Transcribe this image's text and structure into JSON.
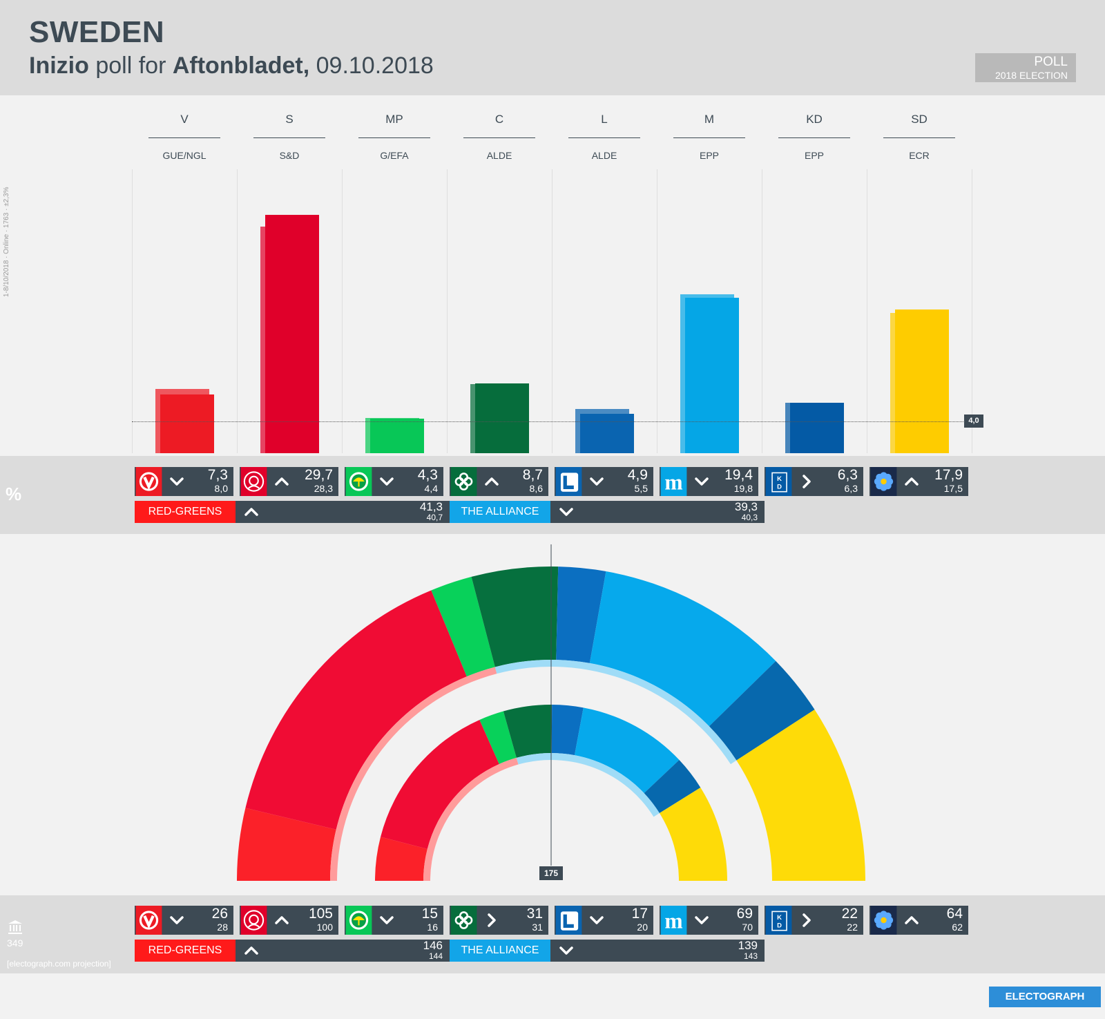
{
  "header": {
    "country": "SWEDEN",
    "pollster": "Inizio",
    "poll_for": "poll for",
    "client": "Aftonbladet,",
    "date": "09.10.2018",
    "badge_line1": "POLL",
    "badge_line2": "2018 ELECTION"
  },
  "side_note": "1-8/10/2018 · Online · 1763 · ±2,3%",
  "colors": {
    "V": "#ed1b24",
    "S": "#e0002a",
    "MP": "#08c757",
    "C": "#066d3c",
    "L": "#0a64b0",
    "M": "#05a6e6",
    "KD": "#045aa5",
    "SD": "#fecc00",
    "red_greens": "#ff1a1a",
    "alliance": "#12a5e8"
  },
  "chart_data": {
    "type": "bar",
    "title": "Inizio poll for Aftonbladet, 09.10.2018",
    "categories": [
      "V",
      "S",
      "MP",
      "C",
      "L",
      "M",
      "KD",
      "SD"
    ],
    "groups": [
      "GUE/NGL",
      "S&D",
      "G/EFA",
      "ALDE",
      "ALDE",
      "EPP",
      "EPP",
      "ECR"
    ],
    "series": [
      {
        "name": "Poll",
        "values": [
          7.3,
          29.7,
          4.3,
          8.7,
          4.9,
          19.4,
          6.3,
          17.9
        ]
      },
      {
        "name": "2018 election",
        "values": [
          8.0,
          28.3,
          4.4,
          8.6,
          5.5,
          19.8,
          6.3,
          17.5
        ]
      }
    ],
    "threshold": 4.0,
    "threshold_label": "4,0",
    "ylim": [
      0,
      30
    ],
    "unit": "%",
    "seats": {
      "type": "parliament-semicircle",
      "total": 349,
      "majority": 175,
      "majority_label": "175",
      "poll_seats": [
        26,
        105,
        15,
        31,
        17,
        69,
        22,
        64
      ],
      "election_seats": [
        28,
        100,
        16,
        31,
        20,
        70,
        22,
        62
      ]
    }
  },
  "party_abbrs": [
    "V",
    "S",
    "MP",
    "C",
    "L",
    "M",
    "KD",
    "SD"
  ],
  "party_groups": [
    "GUE/NGL",
    "S&D",
    "G/EFA",
    "ALDE",
    "ALDE",
    "EPP",
    "EPP",
    "ECR"
  ],
  "percent_row": {
    "symbol": "%",
    "cells": [
      {
        "arrow": "down",
        "value": "7,3",
        "prev": "8,0"
      },
      {
        "arrow": "up",
        "value": "29,7",
        "prev": "28,3"
      },
      {
        "arrow": "down",
        "value": "4,3",
        "prev": "4,4"
      },
      {
        "arrow": "up",
        "value": "8,7",
        "prev": "8,6"
      },
      {
        "arrow": "down",
        "value": "4,9",
        "prev": "5,5"
      },
      {
        "arrow": "down",
        "value": "19,4",
        "prev": "19,8"
      },
      {
        "arrow": "right",
        "value": "6,3",
        "prev": "6,3"
      },
      {
        "arrow": "up",
        "value": "17,9",
        "prev": "17,5"
      }
    ],
    "blocs": [
      {
        "label": "RED-GREENS",
        "arrow": "up",
        "value": "41,3",
        "prev": "40,7"
      },
      {
        "label": "THE ALLIANCE",
        "arrow": "down",
        "value": "39,3",
        "prev": "40,3"
      }
    ]
  },
  "seat_row": {
    "total": "349",
    "credit": "[electograph.com projection]",
    "cells": [
      {
        "arrow": "down",
        "value": "26",
        "prev": "28"
      },
      {
        "arrow": "up",
        "value": "105",
        "prev": "100"
      },
      {
        "arrow": "down",
        "value": "15",
        "prev": "16"
      },
      {
        "arrow": "right",
        "value": "31",
        "prev": "31"
      },
      {
        "arrow": "down",
        "value": "17",
        "prev": "20"
      },
      {
        "arrow": "down",
        "value": "69",
        "prev": "70"
      },
      {
        "arrow": "right",
        "value": "22",
        "prev": "22"
      },
      {
        "arrow": "up",
        "value": "64",
        "prev": "62"
      }
    ],
    "blocs": [
      {
        "label": "RED-GREENS",
        "arrow": "up",
        "value": "146",
        "prev": "144"
      },
      {
        "label": "THE ALLIANCE",
        "arrow": "down",
        "value": "139",
        "prev": "143"
      }
    ]
  },
  "brand": "ELECTOGRAPH"
}
